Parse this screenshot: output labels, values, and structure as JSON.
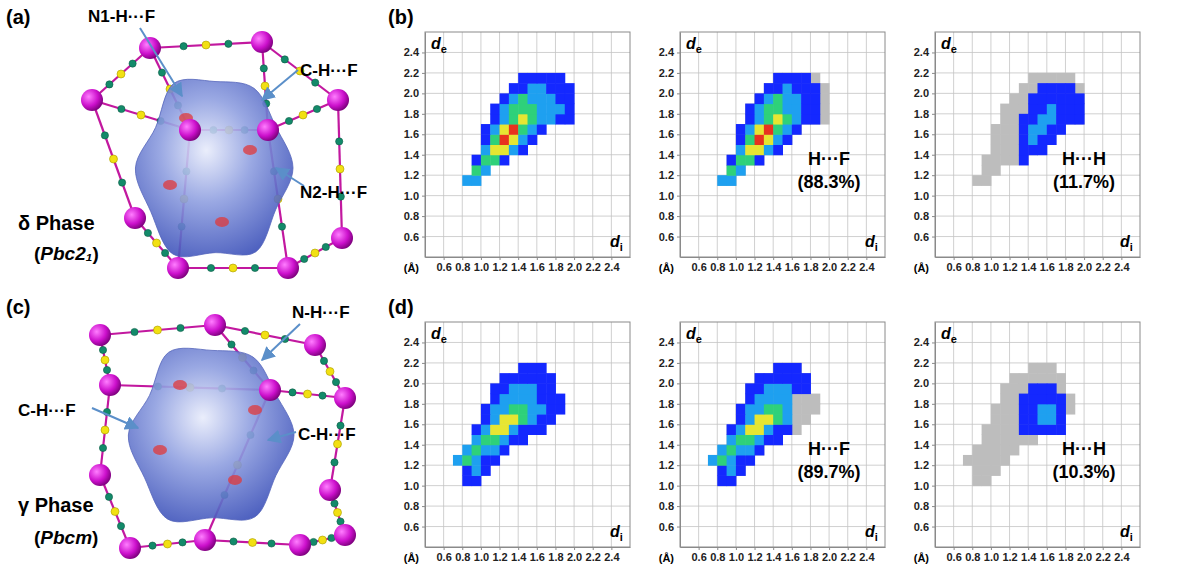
{
  "figure": {
    "panels": [
      {
        "letter": "(a)",
        "phase": "δ Phase",
        "space_group": "(Pbc2₁)",
        "contacts": [
          "N1-H···F",
          "C-H···F",
          "N2-H···F"
        ]
      },
      {
        "letter": "(b)"
      },
      {
        "letter": "(c)",
        "phase": "γ Phase",
        "space_group": "(Pbcm)",
        "contacts": [
          "N-H···F",
          "C-H···F",
          "C-H···F"
        ]
      },
      {
        "letter": "(d)"
      }
    ]
  },
  "chart_data": [
    {
      "type": "heatmap",
      "ylabel": "de",
      "xlabel": "di",
      "unit_label": "(Å)",
      "xlim": [
        0.4,
        2.6
      ],
      "ylim": [
        0.4,
        2.6
      ],
      "xticks": [
        0.6,
        0.8,
        {
          "value": 1,
          "label": "1.0"
        },
        1.2,
        1.4,
        1.6,
        1.8,
        {
          "value": 2,
          "label": "2.0"
        },
        2.2,
        2.4
      ],
      "yticks": [
        0.6,
        0.8,
        {
          "value": 1,
          "label": "1.0"
        },
        1.2,
        1.4,
        1.6,
        1.8,
        {
          "value": 2,
          "label": "2.0"
        },
        2.2,
        2.4
      ],
      "grid": true,
      "bin_size": 0.1,
      "colors": [
        "#1428ff",
        "#1ea0f0",
        "#2ed17a",
        "#e6e632",
        "#e8321e"
      ],
      "rows": [
        {
          "de": 1.1,
          "di_start": 0.8,
          "density": [
            2,
            2
          ]
        },
        {
          "de": 1.2,
          "di_start": 0.9,
          "density": [
            3,
            2
          ]
        },
        {
          "de": 1.3,
          "di_start": 0.9,
          "density": [
            1,
            3,
            3,
            1
          ]
        },
        {
          "de": 1.4,
          "di_start": 1.0,
          "density": [
            2,
            4,
            4,
            2,
            1
          ]
        },
        {
          "de": 1.5,
          "di_start": 1.0,
          "density": [
            1,
            3,
            5,
            4,
            2,
            1
          ]
        },
        {
          "de": 1.6,
          "di_start": 1.0,
          "density": [
            1,
            2,
            4,
            5,
            3,
            2,
            1
          ]
        },
        {
          "de": 1.7,
          "di_start": 1.1,
          "density": [
            1,
            2,
            3,
            4,
            3,
            2,
            2,
            1,
            1
          ]
        },
        {
          "de": 1.8,
          "di_start": 1.1,
          "density": [
            1,
            2,
            3,
            3,
            3,
            2,
            2,
            2,
            1
          ]
        },
        {
          "de": 1.9,
          "di_start": 1.2,
          "density": [
            1,
            2,
            3,
            2,
            2,
            2,
            1,
            1
          ]
        },
        {
          "de": 2.0,
          "di_start": 1.3,
          "density": [
            1,
            1,
            2,
            2,
            1,
            1,
            1
          ]
        },
        {
          "de": 2.1,
          "di_start": 1.4,
          "density": [
            1,
            1,
            1,
            1,
            1
          ]
        }
      ]
    },
    {
      "type": "heatmap",
      "ylabel": "de",
      "xlabel": "di",
      "unit_label": "(Å)",
      "xlim": [
        0.4,
        2.6
      ],
      "ylim": [
        0.4,
        2.6
      ],
      "xticks": [
        0.6,
        0.8,
        {
          "value": 1,
          "label": "1.0"
        },
        1.2,
        1.4,
        1.6,
        1.8,
        {
          "value": 2,
          "label": "2.0"
        },
        2.2,
        2.4
      ],
      "yticks": [
        0.6,
        0.8,
        {
          "value": 1,
          "label": "1.0"
        },
        1.2,
        1.4,
        1.6,
        1.8,
        {
          "value": 2,
          "label": "2.0"
        },
        2.2,
        2.4
      ],
      "grid": true,
      "bin_size": 0.1,
      "colors": [
        "#1428ff",
        "#1ea0f0",
        "#2ed17a",
        "#e6e632",
        "#e8321e"
      ],
      "annotation": {
        "label": "H···F",
        "contribution": {
          "value": 88.3,
          "label": "(88.3%)"
        }
      },
      "rows": [
        {
          "de": 1.1,
          "di_start": 0.8,
          "density": [
            2,
            2
          ]
        },
        {
          "de": 1.2,
          "di_start": 0.9,
          "density": [
            3,
            2
          ]
        },
        {
          "de": 1.3,
          "di_start": 0.9,
          "density": [
            1,
            3,
            3,
            1
          ]
        },
        {
          "de": 1.4,
          "di_start": 1.0,
          "density": [
            2,
            4,
            4,
            2,
            1
          ]
        },
        {
          "de": 1.5,
          "di_start": 1.0,
          "density": [
            1,
            3,
            5,
            4,
            2,
            1
          ]
        },
        {
          "de": 1.6,
          "di_start": 1.0,
          "density": [
            1,
            2,
            4,
            5,
            3,
            2,
            1
          ]
        },
        {
          "de": 1.7,
          "di_start": 1.1,
          "density": [
            1,
            2,
            3,
            4,
            3,
            2,
            1,
            1
          ]
        },
        {
          "de": 1.8,
          "di_start": 1.1,
          "density": [
            1,
            2,
            3,
            3,
            2,
            2,
            1,
            1
          ]
        },
        {
          "de": 1.9,
          "di_start": 1.2,
          "density": [
            1,
            2,
            3,
            2,
            2,
            1,
            1
          ]
        },
        {
          "de": 2.0,
          "di_start": 1.3,
          "density": [
            1,
            1,
            2,
            1,
            1,
            1
          ]
        },
        {
          "de": 2.1,
          "di_start": 1.4,
          "density": [
            1,
            1,
            1,
            1
          ]
        }
      ]
    },
    {
      "type": "heatmap",
      "ylabel": "de",
      "xlabel": "di",
      "unit_label": "(Å)",
      "xlim": [
        0.4,
        2.6
      ],
      "ylim": [
        0.4,
        2.6
      ],
      "xticks": [
        0.6,
        0.8,
        {
          "value": 1,
          "label": "1.0"
        },
        1.2,
        1.4,
        1.6,
        1.8,
        {
          "value": 2,
          "label": "2.0"
        },
        2.2,
        2.4
      ],
      "yticks": [
        0.6,
        0.8,
        {
          "value": 1,
          "label": "1.0"
        },
        1.2,
        1.4,
        1.6,
        1.8,
        {
          "value": 2,
          "label": "2.0"
        },
        2.2,
        2.4
      ],
      "grid": true,
      "bin_size": 0.1,
      "colors": [
        "#1428ff",
        "#1ea0f0",
        "#2ed17a",
        "#e6e632",
        "#e8321e"
      ],
      "annotation": {
        "label": "H···H",
        "contribution": {
          "value": 11.7,
          "label": "(11.7%)"
        }
      },
      "rows": [
        {
          "de": 1.3,
          "di_start": 1.3,
          "density": [
            1
          ]
        },
        {
          "de": 1.4,
          "di_start": 1.3,
          "density": [
            1,
            1,
            1
          ]
        },
        {
          "de": 1.5,
          "di_start": 1.3,
          "density": [
            1,
            2,
            1,
            1
          ]
        },
        {
          "de": 1.6,
          "di_start": 1.3,
          "density": [
            1,
            2,
            2,
            1,
            1
          ]
        },
        {
          "de": 1.7,
          "di_start": 1.3,
          "density": [
            1,
            1,
            2,
            2,
            1,
            1,
            1
          ]
        },
        {
          "de": 1.8,
          "di_start": 1.4,
          "density": [
            1,
            1,
            2,
            1,
            1,
            1
          ]
        },
        {
          "de": 1.9,
          "di_start": 1.4,
          "density": [
            1,
            1,
            1,
            1,
            1,
            1
          ]
        },
        {
          "de": 2.0,
          "di_start": 1.5,
          "density": [
            1,
            1,
            1,
            1
          ]
        }
      ]
    },
    {
      "type": "heatmap",
      "ylabel": "de",
      "xlabel": "di",
      "unit_label": "(Å)",
      "xlim": [
        0.4,
        2.6
      ],
      "ylim": [
        0.4,
        2.6
      ],
      "xticks": [
        0.6,
        0.8,
        {
          "value": 1,
          "label": "1.0"
        },
        1.2,
        1.4,
        1.6,
        1.8,
        {
          "value": 2,
          "label": "2.0"
        },
        2.2,
        2.4
      ],
      "yticks": [
        0.6,
        0.8,
        {
          "value": 1,
          "label": "1.0"
        },
        1.2,
        1.4,
        1.6,
        1.8,
        {
          "value": 2,
          "label": "2.0"
        },
        2.2,
        2.4
      ],
      "grid": true,
      "bin_size": 0.1,
      "colors": [
        "#1428ff",
        "#1ea0f0",
        "#2ed17a",
        "#e6e632",
        "#e8321e"
      ],
      "rows": [
        {
          "de": 1.0,
          "di_start": 0.8,
          "density": [
            1,
            1
          ]
        },
        {
          "de": 1.1,
          "di_start": 0.8,
          "density": [
            1,
            2,
            1
          ]
        },
        {
          "de": 1.2,
          "di_start": 0.7,
          "density": [
            2,
            3,
            2,
            1,
            1
          ]
        },
        {
          "de": 1.3,
          "di_start": 0.8,
          "density": [
            2,
            3,
            2,
            2,
            1
          ]
        },
        {
          "de": 1.4,
          "di_start": 0.9,
          "density": [
            2,
            3,
            3,
            2,
            1,
            1
          ]
        },
        {
          "de": 1.5,
          "di_start": 0.9,
          "density": [
            1,
            2,
            4,
            4,
            2,
            1,
            1,
            1
          ]
        },
        {
          "de": 1.6,
          "di_start": 1.0,
          "density": [
            1,
            2,
            4,
            4,
            3,
            2,
            1,
            1
          ]
        },
        {
          "de": 1.7,
          "di_start": 1.0,
          "density": [
            1,
            2,
            2,
            3,
            3,
            2,
            2,
            1,
            1
          ]
        },
        {
          "de": 1.8,
          "di_start": 1.1,
          "density": [
            1,
            2,
            2,
            2,
            2,
            1,
            1,
            1
          ]
        },
        {
          "de": 1.9,
          "di_start": 1.1,
          "density": [
            1,
            1,
            2,
            2,
            2,
            1,
            1
          ]
        },
        {
          "de": 2.0,
          "di_start": 1.2,
          "density": [
            1,
            1,
            1,
            1,
            1,
            1
          ]
        },
        {
          "de": 2.1,
          "di_start": 1.4,
          "density": [
            1,
            1,
            1
          ]
        }
      ]
    },
    {
      "type": "heatmap",
      "ylabel": "de",
      "xlabel": "di",
      "unit_label": "(Å)",
      "xlim": [
        0.4,
        2.6
      ],
      "ylim": [
        0.4,
        2.6
      ],
      "xticks": [
        0.6,
        0.8,
        {
          "value": 1,
          "label": "1.0"
        },
        1.2,
        1.4,
        1.6,
        1.8,
        {
          "value": 2,
          "label": "2.0"
        },
        2.2,
        2.4
      ],
      "yticks": [
        0.6,
        0.8,
        {
          "value": 1,
          "label": "1.0"
        },
        1.2,
        1.4,
        1.6,
        1.8,
        {
          "value": 2,
          "label": "2.0"
        },
        2.2,
        2.4
      ],
      "grid": true,
      "bin_size": 0.1,
      "colors": [
        "#1428ff",
        "#1ea0f0",
        "#2ed17a",
        "#e6e632",
        "#e8321e"
      ],
      "annotation": {
        "label": "H···F",
        "contribution": {
          "value": 89.7,
          "label": "(89.7%)"
        }
      },
      "rows": [
        {
          "de": 1.0,
          "di_start": 0.8,
          "density": [
            1,
            1
          ]
        },
        {
          "de": 1.1,
          "di_start": 0.8,
          "density": [
            1,
            2,
            1
          ]
        },
        {
          "de": 1.2,
          "di_start": 0.7,
          "density": [
            2,
            3,
            2,
            1,
            1
          ]
        },
        {
          "de": 1.3,
          "di_start": 0.8,
          "density": [
            2,
            3,
            2,
            2,
            1
          ]
        },
        {
          "de": 1.4,
          "di_start": 0.9,
          "density": [
            2,
            3,
            3,
            2,
            1,
            1
          ]
        },
        {
          "de": 1.5,
          "di_start": 0.9,
          "density": [
            1,
            2,
            4,
            4,
            2,
            1,
            1
          ]
        },
        {
          "de": 1.6,
          "di_start": 1.0,
          "density": [
            1,
            2,
            4,
            4,
            3,
            2
          ]
        },
        {
          "de": 1.7,
          "di_start": 1.0,
          "density": [
            1,
            2,
            2,
            3,
            3,
            2
          ]
        },
        {
          "de": 1.8,
          "di_start": 1.1,
          "density": [
            1,
            2,
            2,
            2,
            2
          ]
        },
        {
          "de": 1.9,
          "di_start": 1.1,
          "density": [
            1,
            1,
            2,
            2,
            2,
            1,
            1
          ]
        },
        {
          "de": 2.0,
          "di_start": 1.2,
          "density": [
            1,
            1,
            1,
            1,
            1,
            1
          ]
        },
        {
          "de": 2.1,
          "di_start": 1.4,
          "density": [
            1,
            1,
            1
          ]
        }
      ]
    },
    {
      "type": "heatmap",
      "ylabel": "de",
      "xlabel": "di",
      "unit_label": "(Å)",
      "xlim": [
        0.4,
        2.6
      ],
      "ylim": [
        0.4,
        2.6
      ],
      "xticks": [
        0.6,
        0.8,
        {
          "value": 1,
          "label": "1.0"
        },
        1.2,
        1.4,
        1.6,
        1.8,
        {
          "value": 2,
          "label": "2.0"
        },
        2.2,
        2.4
      ],
      "yticks": [
        0.6,
        0.8,
        {
          "value": 1,
          "label": "1.0"
        },
        1.2,
        1.4,
        1.6,
        1.8,
        {
          "value": 2,
          "label": "2.0"
        },
        2.2,
        2.4
      ],
      "grid": true,
      "bin_size": 0.1,
      "colors": [
        "#1428ff",
        "#1ea0f0",
        "#2ed17a",
        "#e6e632",
        "#e8321e"
      ],
      "annotation": {
        "label": "H···H",
        "contribution": {
          "value": 10.3,
          "label": "(10.3%)"
        }
      },
      "rows": [
        {
          "de": 1.5,
          "di_start": 1.3,
          "density": [
            1,
            1,
            1,
            1,
            1
          ]
        },
        {
          "de": 1.6,
          "di_start": 1.3,
          "density": [
            1,
            1,
            2,
            2,
            1
          ]
        },
        {
          "de": 1.7,
          "di_start": 1.3,
          "density": [
            1,
            1,
            2,
            2,
            1
          ]
        },
        {
          "de": 1.8,
          "di_start": 1.3,
          "density": [
            1,
            1,
            1,
            1,
            1
          ]
        },
        {
          "de": 1.9,
          "di_start": 1.4,
          "density": [
            1,
            1,
            1
          ]
        }
      ]
    }
  ]
}
